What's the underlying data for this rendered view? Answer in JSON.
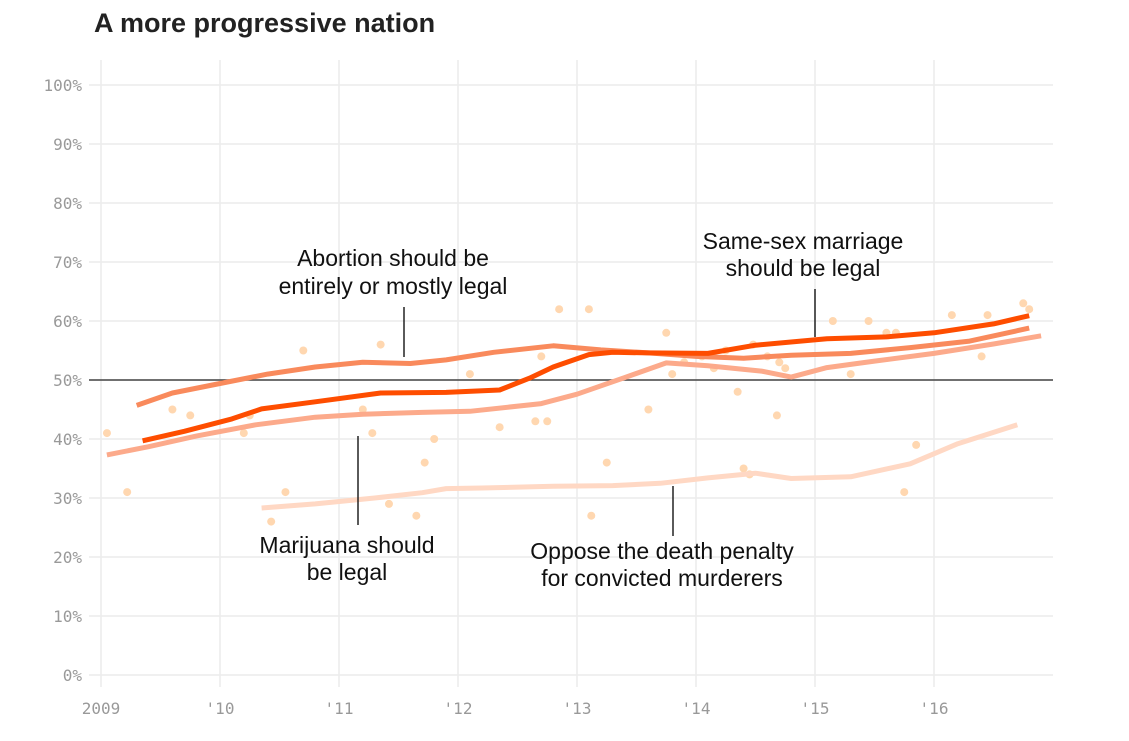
{
  "chart_data": {
    "type": "line",
    "title": "A more progressive nation",
    "xlabel": "",
    "ylabel": "",
    "xlim": [
      2009,
      2017
    ],
    "ylim": [
      0,
      100
    ],
    "x_ticks": [
      {
        "value": 2009,
        "label": "2009"
      },
      {
        "value": 2010,
        "label": "'10"
      },
      {
        "value": 2011,
        "label": "'11"
      },
      {
        "value": 2012,
        "label": "'12"
      },
      {
        "value": 2013,
        "label": "'13"
      },
      {
        "value": 2014,
        "label": "'14"
      },
      {
        "value": 2015,
        "label": "'15"
      },
      {
        "value": 2016,
        "label": "'16"
      }
    ],
    "y_ticks": [
      {
        "value": 0,
        "label": "0%"
      },
      {
        "value": 10,
        "label": "10%"
      },
      {
        "value": 20,
        "label": "20%"
      },
      {
        "value": 30,
        "label": "30%"
      },
      {
        "value": 40,
        "label": "40%"
      },
      {
        "value": 50,
        "label": "50%"
      },
      {
        "value": 60,
        "label": "60%"
      },
      {
        "value": 70,
        "label": "70%"
      },
      {
        "value": 80,
        "label": "80%"
      },
      {
        "value": 90,
        "label": "90%"
      },
      {
        "value": 100,
        "label": "100%"
      }
    ],
    "grid": true,
    "reference_line": 50,
    "series": [
      {
        "label": "Abortion should be entirely or mostly legal",
        "color": "#f98a5c",
        "label_anchor": {
          "x": 2011.53,
          "y": 53.3
        },
        "x": [
          2009.3,
          2009.6,
          2010.0,
          2010.4,
          2010.8,
          2011.2,
          2011.6,
          2011.9,
          2012.3,
          2012.8,
          2013.2,
          2013.6,
          2014.0,
          2014.4,
          2014.8,
          2015.3,
          2015.8,
          2016.3,
          2016.8
        ],
        "values": [
          45.7,
          47.8,
          49.4,
          51.0,
          52.2,
          53.0,
          52.8,
          53.4,
          54.7,
          55.8,
          55.1,
          54.6,
          54.0,
          53.7,
          54.2,
          54.5,
          55.5,
          56.6,
          58.8
        ]
      },
      {
        "label": "Same-sex marriage should be legal",
        "color": "#fe4d00",
        "label_anchor": {
          "x": 2014.96,
          "y": 57.0
        },
        "x": [
          2009.35,
          2009.7,
          2010.1,
          2010.35,
          2010.8,
          2011.35,
          2011.9,
          2012.35,
          2012.6,
          2012.8,
          2013.1,
          2013.3,
          2013.6,
          2014.1,
          2014.5,
          2015.1,
          2015.6,
          2016.0,
          2016.5,
          2016.8
        ],
        "values": [
          39.7,
          41.3,
          43.4,
          45.1,
          46.3,
          47.8,
          47.9,
          48.3,
          50.3,
          52.2,
          54.3,
          54.7,
          54.6,
          54.5,
          55.9,
          57.0,
          57.3,
          58.0,
          59.5,
          60.9
        ]
      },
      {
        "label": "Marijuana should be legal",
        "color": "#fcaa8b",
        "label_anchor": {
          "x": 2011.13,
          "y": 44.2
        },
        "x": [
          2009.05,
          2009.4,
          2009.8,
          2010.3,
          2010.8,
          2011.2,
          2011.7,
          2012.1,
          2012.7,
          2013.0,
          2013.4,
          2013.75,
          2014.1,
          2014.55,
          2014.8,
          2015.1,
          2015.5,
          2016.0,
          2016.5,
          2016.9
        ],
        "values": [
          37.3,
          38.7,
          40.5,
          42.4,
          43.7,
          44.2,
          44.5,
          44.7,
          46.0,
          47.6,
          50.4,
          52.9,
          52.4,
          51.5,
          50.5,
          52.1,
          53.2,
          54.5,
          56.1,
          57.5
        ]
      },
      {
        "label": "Oppose the death penalty for convicted murderers",
        "color": "#ffd8c4",
        "label_anchor": {
          "x": 2013.77,
          "y": 32.0
        },
        "x": [
          2010.35,
          2010.8,
          2011.3,
          2011.7,
          2011.9,
          2012.2,
          2012.8,
          2013.3,
          2013.7,
          2014.1,
          2014.5,
          2014.8,
          2015.3,
          2015.8,
          2016.2,
          2016.7
        ],
        "values": [
          28.3,
          29.0,
          30.0,
          30.9,
          31.6,
          31.7,
          32.0,
          32.1,
          32.5,
          33.4,
          34.2,
          33.3,
          33.6,
          35.8,
          39.2,
          42.4
        ]
      }
    ],
    "scatter": {
      "color": "#ffd7b0",
      "x": [
        2009.05,
        2009.22,
        2009.6,
        2009.75,
        2010.2,
        2010.25,
        2010.43,
        2010.55,
        2010.7,
        2011.2,
        2011.28,
        2011.35,
        2011.42,
        2011.65,
        2011.72,
        2011.8,
        2012.1,
        2012.35,
        2012.65,
        2012.7,
        2012.75,
        2012.85,
        2013.1,
        2013.12,
        2013.25,
        2013.6,
        2013.75,
        2013.8,
        2013.9,
        2014.05,
        2014.15,
        2014.25,
        2014.35,
        2014.4,
        2014.45,
        2014.48,
        2014.6,
        2014.68,
        2014.7,
        2014.75,
        2015.15,
        2015.3,
        2015.45,
        2015.6,
        2015.68,
        2015.75,
        2015.85,
        2016.15,
        2016.4,
        2016.45,
        2016.75,
        2016.8
      ],
      "values": [
        41,
        31,
        45,
        44,
        41,
        44,
        26,
        31,
        55,
        45,
        41,
        56,
        29,
        27,
        36,
        40,
        51,
        42,
        43,
        54,
        43,
        62,
        62,
        27,
        36,
        45,
        58,
        51,
        53,
        54,
        52,
        55,
        48,
        35,
        34,
        56,
        54,
        44,
        53,
        52,
        60,
        51,
        60,
        58,
        58,
        31,
        39,
        61,
        54,
        61,
        63,
        62
      ]
    },
    "annotations": [
      {
        "lines": [
          "Abortion should be",
          "entirely or mostly legal"
        ],
        "series_label": "Abortion should be entirely or mostly legal"
      },
      {
        "lines": [
          "Same-sex marriage",
          "should be legal"
        ],
        "series_label": "Same-sex marriage should be legal"
      },
      {
        "lines": [
          "Marijuana should",
          "be legal"
        ],
        "series_label": "Marijuana should be legal"
      },
      {
        "lines": [
          "Oppose the death penalty",
          "for convicted murderers"
        ],
        "series_label": "Oppose the death penalty for convicted murderers"
      }
    ]
  }
}
